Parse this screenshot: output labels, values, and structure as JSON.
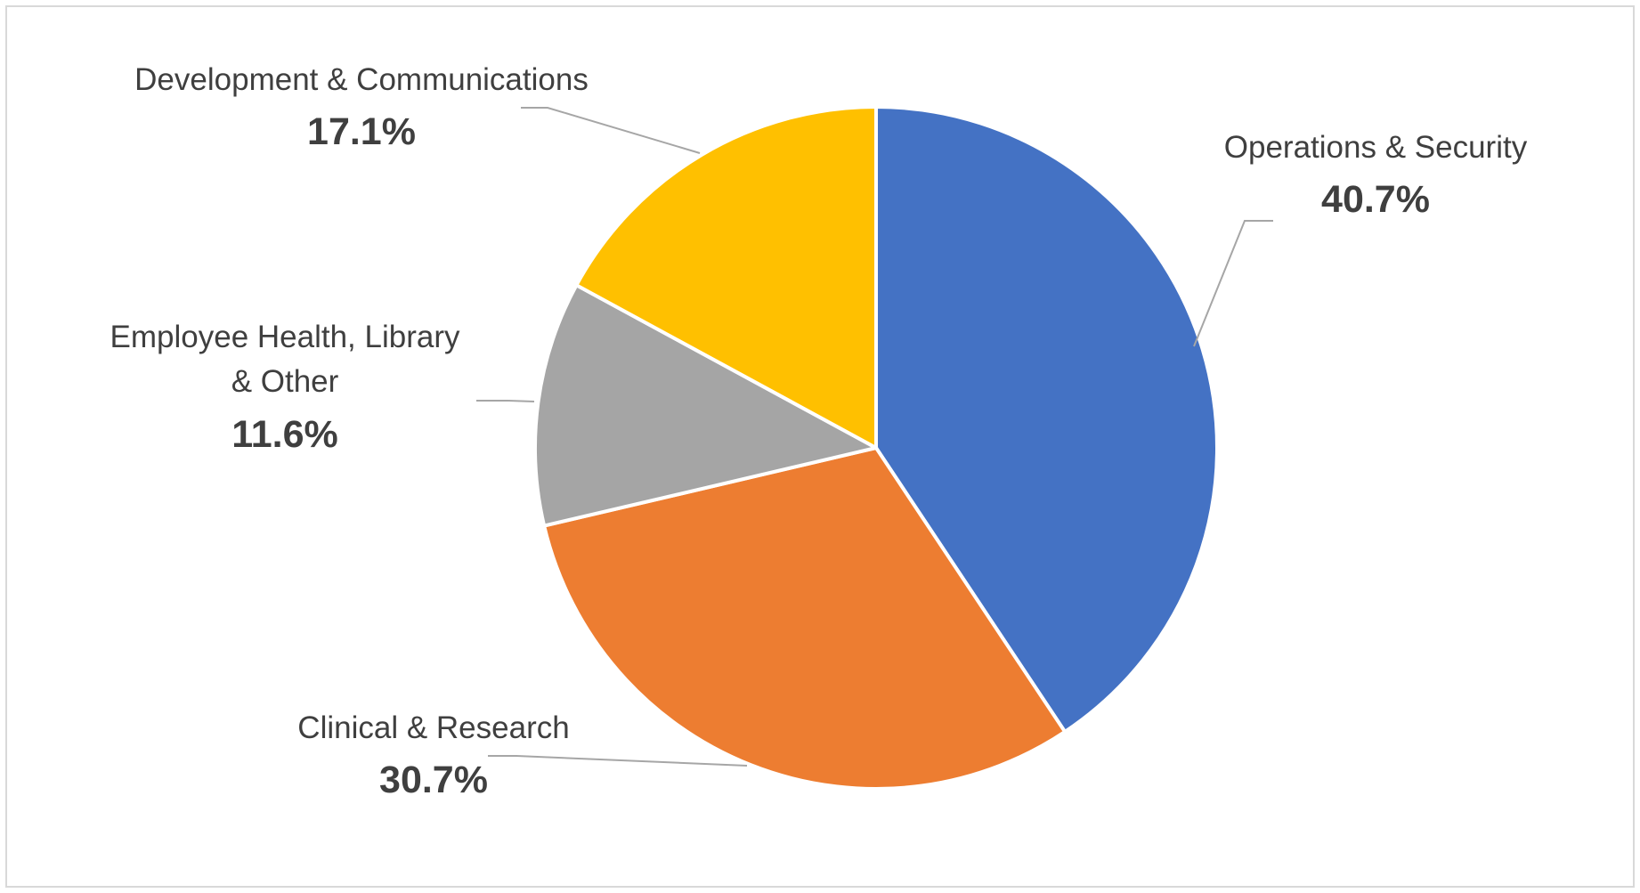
{
  "chart_data": {
    "type": "pie",
    "title": "",
    "slices": [
      {
        "label": [
          "Operations & Security"
        ],
        "value": 40.7,
        "value_label": "40.7%",
        "color": "#4472C4"
      },
      {
        "label": [
          "Clinical & Research"
        ],
        "value": 30.7,
        "value_label": "30.7%",
        "color": "#ED7D31"
      },
      {
        "label": [
          "Employee Health, Library",
          "& Other"
        ],
        "value": 11.6,
        "value_label": "11.6%",
        "color": "#A5A5A5"
      },
      {
        "label": [
          "Development & Communications"
        ],
        "value": 17.1,
        "value_label": "17.1%",
        "color": "#FFC000"
      }
    ],
    "start_angle_deg": 0,
    "direction": "clockwise",
    "slice_border_color": "#FFFFFF",
    "leader_line_color": "#A6A6A6",
    "label_position": "outside with leader lines",
    "legend": "none"
  }
}
